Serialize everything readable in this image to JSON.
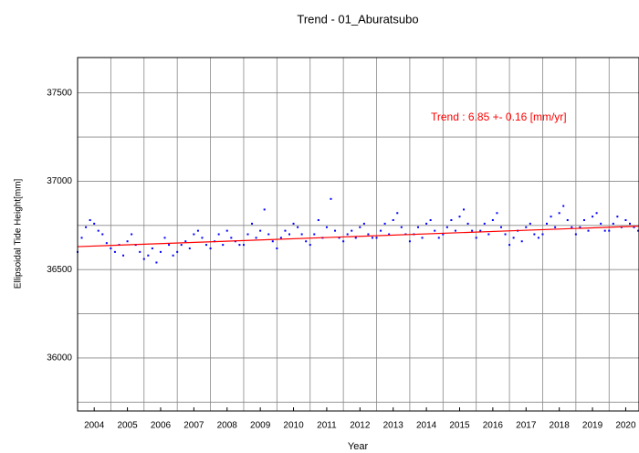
{
  "chart_data": {
    "type": "scatter",
    "title": "Trend - 01_Aburatsubo",
    "xlabel": "Year",
    "ylabel": "Ellipsoidal Tide Height[mm]",
    "annotation": "Trend :  6.85 +-  0.16 [mm/yr]",
    "annotation_color": "#ff0000",
    "color": "#0000ff",
    "xlim": [
      2004,
      2020.9
    ],
    "ylim": [
      35700,
      37700
    ],
    "yticks": [
      36000,
      36500,
      37000,
      37500
    ],
    "yticks_minor": [
      35750,
      36250,
      36750,
      37250
    ],
    "xticks": [
      {
        "value": 2004.5,
        "label": "2004"
      },
      {
        "value": 2005.5,
        "label": "2005"
      },
      {
        "value": 2006.5,
        "label": "2006"
      },
      {
        "value": 2007.5,
        "label": "2007"
      },
      {
        "value": 2008.5,
        "label": "2008"
      },
      {
        "value": 2009.5,
        "label": "2009"
      },
      {
        "value": 2010.5,
        "label": "2010"
      },
      {
        "value": 2011.5,
        "label": "2011"
      },
      {
        "value": 2012.5,
        "label": "2012"
      },
      {
        "value": 2013.5,
        "label": "2013"
      },
      {
        "value": 2014.5,
        "label": "2014"
      },
      {
        "value": 2015.5,
        "label": "2015"
      },
      {
        "value": 2016.5,
        "label": "2016"
      },
      {
        "value": 2017.5,
        "label": "2017"
      },
      {
        "value": 2018.5,
        "label": "2018"
      },
      {
        "value": 2019.5,
        "label": "2019"
      },
      {
        "value": 2020.5,
        "label": "2020"
      }
    ],
    "xgrid": [
      2005,
      2006,
      2007,
      2008,
      2009,
      2010,
      2011,
      2012,
      2013,
      2014,
      2015,
      2016,
      2017,
      2018,
      2019,
      2020
    ],
    "grid": true,
    "trend": {
      "color": "#ff0000",
      "x": [
        2004,
        2020.9
      ],
      "values": [
        36630,
        36746
      ]
    },
    "x": [
      2004,
      2004.125,
      2004.25,
      2004.375,
      2004.5,
      2004.625,
      2004.75,
      2004.875,
      2005,
      2005.125,
      2005.25,
      2005.375,
      2005.5,
      2005.625,
      2005.75,
      2005.875,
      2006,
      2006.125,
      2006.25,
      2006.375,
      2006.5,
      2006.625,
      2006.75,
      2006.875,
      2007,
      2007.125,
      2007.25,
      2007.375,
      2007.5,
      2007.625,
      2007.75,
      2007.875,
      2008,
      2008.125,
      2008.25,
      2008.375,
      2008.5,
      2008.625,
      2008.75,
      2008.875,
      2009,
      2009.125,
      2009.25,
      2009.375,
      2009.5,
      2009.625,
      2009.75,
      2009.875,
      2010,
      2010.125,
      2010.25,
      2010.375,
      2010.5,
      2010.625,
      2010.75,
      2010.875,
      2011,
      2011.125,
      2011.25,
      2011.375,
      2011.5,
      2011.625,
      2011.75,
      2011.875,
      2012,
      2012.125,
      2012.25,
      2012.375,
      2012.5,
      2012.625,
      2012.75,
      2012.875,
      2013,
      2013.125,
      2013.25,
      2013.375,
      2013.5,
      2013.625,
      2013.75,
      2013.875,
      2014,
      2014.125,
      2014.25,
      2014.375,
      2014.5,
      2014.625,
      2014.75,
      2014.875,
      2015,
      2015.125,
      2015.25,
      2015.375,
      2015.5,
      2015.625,
      2015.75,
      2015.875,
      2016,
      2016.125,
      2016.25,
      2016.375,
      2016.5,
      2016.625,
      2016.75,
      2016.875,
      2017,
      2017.125,
      2017.25,
      2017.375,
      2017.5,
      2017.625,
      2017.75,
      2017.875,
      2018,
      2018.125,
      2018.25,
      2018.375,
      2018.5,
      2018.625,
      2018.75,
      2018.875,
      2019,
      2019.125,
      2019.25,
      2019.375,
      2019.5,
      2019.625,
      2019.75,
      2019.875,
      2020,
      2020.125,
      2020.25,
      2020.375,
      2020.5,
      2020.625,
      2020.75,
      2020.875
    ],
    "values": [
      36600,
      36680,
      36740,
      36780,
      36760,
      36720,
      36700,
      36650,
      36620,
      36600,
      36640,
      36580,
      36660,
      36700,
      36640,
      36600,
      36560,
      36580,
      36620,
      36540,
      36600,
      36680,
      36640,
      36580,
      36600,
      36640,
      36660,
      36620,
      36700,
      36720,
      36680,
      36640,
      36620,
      36660,
      36700,
      36640,
      36720,
      36680,
      36660,
      36640,
      36640,
      36700,
      36760,
      36680,
      36720,
      36840,
      36700,
      36660,
      36620,
      36680,
      36720,
      36700,
      36760,
      36740,
      36700,
      36660,
      36640,
      36700,
      36780,
      36680,
      36740,
      36900,
      36720,
      36680,
      36660,
      36700,
      36720,
      36680,
      36740,
      36760,
      36700,
      36680,
      36680,
      36720,
      36760,
      36700,
      36780,
      36820,
      36740,
      36700,
      36660,
      36700,
      36740,
      36680,
      36760,
      36780,
      36720,
      36680,
      36700,
      36740,
      36780,
      36720,
      36800,
      36840,
      36760,
      36720,
      36680,
      36720,
      36760,
      36700,
      36780,
      36820,
      36740,
      36700,
      36640,
      36680,
      36720,
      36660,
      36740,
      36760,
      36700,
      36680,
      36700,
      36760,
      36800,
      36740,
      36820,
      36860,
      36780,
      36740,
      36700,
      36740,
      36780,
      36720,
      36800,
      36820,
      36760,
      36720,
      36720,
      36760,
      36800,
      36740,
      36780,
      36760,
      36740,
      36720
    ]
  }
}
